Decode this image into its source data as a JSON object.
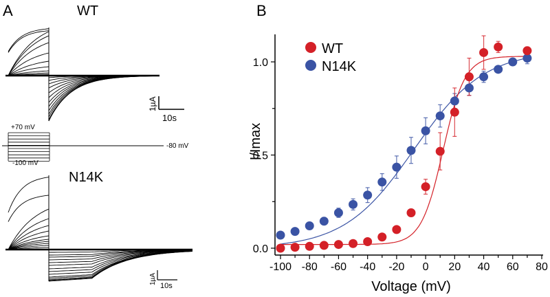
{
  "panel_a": {
    "label": "A",
    "wt_title": "WT",
    "n14k_title": "N14K",
    "scale_current": "1µA",
    "scale_time": "10s",
    "protocol": {
      "top_label": "+70 mV",
      "bottom_label": "-100 mV",
      "holding_label": "-80 mV"
    }
  },
  "panel_b": {
    "label": "B"
  },
  "colors": {
    "wt": "#d42027",
    "n14k": "#3a53a4",
    "axis": "#000000"
  },
  "chart_data": {
    "type": "scatter",
    "title": "",
    "xlabel": "Voltage (mV)",
    "ylabel": "I/Imax",
    "xlim": [
      -100,
      80
    ],
    "ylim": [
      0,
      1.1
    ],
    "xticks": [
      "-100",
      "-80",
      "-60",
      "-40",
      "-20",
      "0",
      "20",
      "40",
      "60",
      "80"
    ],
    "xtick_values": [
      -100,
      -80,
      -60,
      -40,
      -20,
      0,
      20,
      40,
      60,
      80
    ],
    "yticks": [
      "0.0",
      "0.5",
      "1.0"
    ],
    "ytick_values": [
      0.0,
      0.5,
      1.0
    ],
    "grid": false,
    "legend_position": "top-left",
    "series": [
      {
        "name": "WT",
        "x": [
          -100,
          -90,
          -80,
          -70,
          -60,
          -50,
          -40,
          -30,
          -20,
          -10,
          0,
          10,
          20,
          30,
          40,
          50,
          70
        ],
        "y": [
          0.0,
          0.005,
          0.01,
          0.015,
          0.02,
          0.025,
          0.035,
          0.06,
          0.1,
          0.19,
          0.33,
          0.52,
          0.73,
          0.92,
          1.05,
          1.08,
          1.06
        ],
        "err": [
          0,
          0,
          0,
          0,
          0,
          0,
          0,
          0,
          0,
          0.02,
          0.04,
          0.1,
          0.13,
          0.1,
          0.09,
          0.03,
          0.02
        ],
        "fit": "boltzmann",
        "fit_v_half": 12,
        "fit_k": 7.5,
        "fit_min": 0.02,
        "fit_max": 1.03
      },
      {
        "name": "N14K",
        "x": [
          -100,
          -90,
          -80,
          -70,
          -60,
          -50,
          -40,
          -30,
          -20,
          -10,
          0,
          10,
          20,
          30,
          40,
          50,
          60,
          70
        ],
        "y": [
          0.07,
          0.09,
          0.12,
          0.145,
          0.19,
          0.235,
          0.285,
          0.355,
          0.435,
          0.525,
          0.63,
          0.71,
          0.79,
          0.86,
          0.92,
          0.96,
          1.0,
          1.02
        ],
        "err": [
          0.01,
          0.015,
          0.02,
          0.02,
          0.025,
          0.03,
          0.04,
          0.045,
          0.06,
          0.07,
          0.07,
          0.06,
          0.04,
          0.04,
          0.03,
          0.01,
          0.01,
          0.03
        ],
        "fit": "boltzmann",
        "fit_v_half": -8,
        "fit_k": 24,
        "fit_min": 0.0,
        "fit_max": 1.06
      }
    ]
  }
}
